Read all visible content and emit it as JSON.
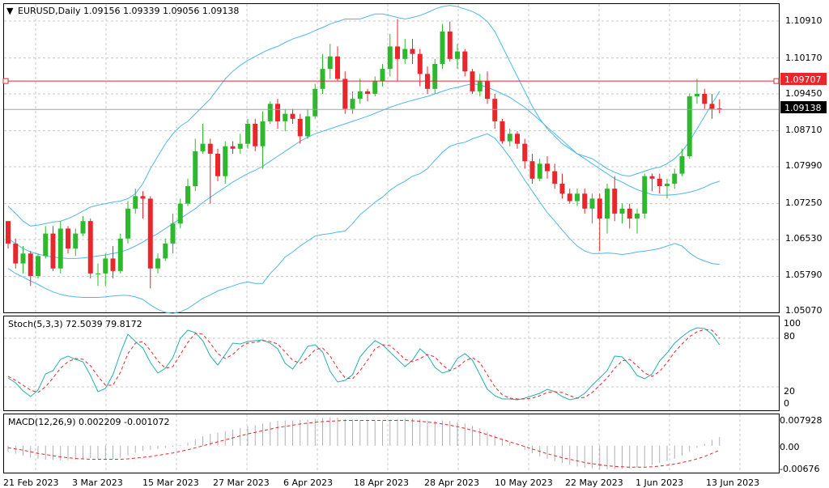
{
  "colors": {
    "bull": "#2db82d",
    "bear": "#e8262b",
    "band": "#4fb8e8",
    "grid": "#c8c8c8",
    "hline": "#e8262b",
    "curline": "#a0a0a0",
    "stoch_main": "#20b2aa",
    "stoch_signal": "#e8262b",
    "macd_hist": "#b0b0b0",
    "macd_signal": "#e8262b"
  },
  "main": {
    "title_arrow": "▼",
    "title": "EURUSD,Daily  1.09156 1.09339 1.09056 1.09138",
    "price_labels": [
      "1.10910",
      "1.10170",
      "1.09450",
      "1.08710",
      "1.07990",
      "1.07250",
      "1.06530",
      "1.05790",
      "1.05070"
    ],
    "hline_label": "1.09707",
    "current_label": "1.09138"
  },
  "stoch": {
    "title": "Stoch(5,3,3) 72.5039 79.8172",
    "levels": [
      "100",
      "80",
      "20",
      "0"
    ]
  },
  "macd": {
    "title": "MACD(12,26,9) 0.002209 -0.001072",
    "levels": [
      "0.007928",
      "0.00",
      "-0.00676"
    ]
  },
  "dates": [
    "21 Feb 2023",
    "3 Mar 2023",
    "15 Mar 2023",
    "27 Mar 2023",
    "6 Apr 2023",
    "18 Apr 2023",
    "28 Apr 2023",
    "10 May 2023",
    "22 May 2023",
    "1 Jun 2023",
    "13 Jun 2023"
  ],
  "chart_data": {
    "type": "candlestick",
    "symbol": "EURUSD",
    "timeframe": "Daily",
    "ylim": [
      1.0507,
      1.1125
    ],
    "horizontal_line": 1.09707,
    "current_price": 1.09138,
    "ohlc": [
      [
        1.069,
        1.069,
        1.0635,
        1.0645
      ],
      [
        1.0645,
        1.0655,
        1.0595,
        1.0605
      ],
      [
        1.0605,
        1.064,
        1.0585,
        1.0625
      ],
      [
        1.0625,
        1.063,
        1.056,
        1.058
      ],
      [
        1.058,
        1.0625,
        1.0575,
        1.062
      ],
      [
        1.062,
        1.068,
        1.0615,
        1.0665
      ],
      [
        1.0665,
        1.068,
        1.059,
        1.0595
      ],
      [
        1.0595,
        1.069,
        1.0585,
        1.0675
      ],
      [
        1.0675,
        1.068,
        1.0625,
        1.0635
      ],
      [
        1.0635,
        1.0675,
        1.062,
        1.0665
      ],
      [
        1.0665,
        1.07,
        1.066,
        1.069
      ],
      [
        1.069,
        1.0695,
        1.0575,
        1.0585
      ],
      [
        1.0585,
        1.0605,
        1.056,
        1.0585
      ],
      [
        1.0585,
        1.0625,
        1.056,
        1.0615
      ],
      [
        1.0615,
        1.064,
        1.0575,
        1.059
      ],
      [
        1.059,
        1.0665,
        1.0585,
        1.0655
      ],
      [
        1.0655,
        1.073,
        1.0645,
        1.0715
      ],
      [
        1.0715,
        1.0755,
        1.0705,
        1.074
      ],
      [
        1.074,
        1.075,
        1.0695,
        1.0735
      ],
      [
        1.0735,
        1.074,
        1.0555,
        1.0595
      ],
      [
        1.0595,
        1.0625,
        1.0585,
        1.0615
      ],
      [
        1.0615,
        1.0655,
        1.061,
        1.0645
      ],
      [
        1.0645,
        1.0705,
        1.0625,
        1.0685
      ],
      [
        1.0685,
        1.0735,
        1.0675,
        1.0725
      ],
      [
        1.0725,
        1.0775,
        1.072,
        1.076
      ],
      [
        1.076,
        1.0855,
        1.075,
        1.083
      ],
      [
        1.083,
        1.0885,
        1.0825,
        1.0845
      ],
      [
        1.0845,
        1.0855,
        1.0725,
        1.0825
      ],
      [
        1.0825,
        1.0835,
        1.077,
        1.078
      ],
      [
        1.078,
        1.085,
        1.0765,
        1.084
      ],
      [
        1.084,
        1.085,
        1.0825,
        1.0835
      ],
      [
        1.0835,
        1.0865,
        1.0825,
        1.0845
      ],
      [
        1.0845,
        1.0895,
        1.0835,
        1.0885
      ],
      [
        1.0885,
        1.0895,
        1.083,
        1.084
      ],
      [
        1.084,
        1.091,
        1.0795,
        1.089
      ],
      [
        1.089,
        1.093,
        1.0885,
        1.0925
      ],
      [
        1.0925,
        1.0935,
        1.0875,
        1.089
      ],
      [
        1.089,
        1.0915,
        1.087,
        1.0905
      ],
      [
        1.0905,
        1.0915,
        1.0885,
        1.0895
      ],
      [
        1.0895,
        1.0905,
        1.0845,
        1.086
      ],
      [
        1.086,
        1.0915,
        1.0855,
        1.09
      ],
      [
        1.09,
        1.0965,
        1.0895,
        1.0955
      ],
      [
        1.0955,
        1.1025,
        1.0945,
        1.0995
      ],
      [
        1.0995,
        1.1045,
        1.0975,
        1.102
      ],
      [
        1.102,
        1.104,
        1.097,
        1.0975
      ],
      [
        1.0975,
        1.099,
        1.0905,
        1.0915
      ],
      [
        1.0915,
        1.095,
        1.0905,
        1.0935
      ],
      [
        1.0935,
        1.0975,
        1.0925,
        1.095
      ],
      [
        1.095,
        1.0955,
        1.093,
        1.0945
      ],
      [
        1.0945,
        1.098,
        1.094,
        1.097
      ],
      [
        1.097,
        1.1005,
        1.096,
        1.0995
      ],
      [
        1.0995,
        1.1065,
        1.098,
        1.104
      ],
      [
        1.104,
        1.1095,
        1.097,
        1.1015
      ],
      [
        1.1015,
        1.1055,
        1.1005,
        1.1035
      ],
      [
        1.1035,
        1.1055,
        1.1005,
        1.1025
      ],
      [
        1.1025,
        1.1035,
        1.096,
        1.0985
      ],
      [
        1.0985,
        1.1,
        1.0945,
        1.0955
      ],
      [
        1.0955,
        1.1015,
        1.0945,
        1.1005
      ],
      [
        1.1005,
        1.1085,
        1.0995,
        1.107
      ],
      [
        1.107,
        1.109,
        1.101,
        1.1015
      ],
      [
        1.1015,
        1.1045,
        1.0995,
        1.103
      ],
      [
        1.103,
        1.1035,
        1.098,
        1.099
      ],
      [
        1.099,
        1.0995,
        1.0945,
        1.095
      ],
      [
        1.095,
        1.0985,
        1.094,
        1.097
      ],
      [
        1.097,
        1.099,
        1.0925,
        1.0935
      ],
      [
        1.0935,
        1.0945,
        1.0875,
        1.089
      ],
      [
        1.089,
        1.0895,
        1.0845,
        1.085
      ],
      [
        1.085,
        1.0875,
        1.084,
        1.0865
      ],
      [
        1.0865,
        1.087,
        1.0835,
        1.0845
      ],
      [
        1.0845,
        1.0855,
        1.0795,
        1.081
      ],
      [
        1.081,
        1.0825,
        1.0765,
        1.0775
      ],
      [
        1.0775,
        1.0815,
        1.077,
        1.0805
      ],
      [
        1.0805,
        1.082,
        1.0775,
        1.079
      ],
      [
        1.079,
        1.0805,
        1.0755,
        1.0765
      ],
      [
        1.0765,
        1.0785,
        1.0735,
        1.0745
      ],
      [
        1.0745,
        1.0755,
        1.0725,
        1.073
      ],
      [
        1.073,
        1.0755,
        1.072,
        1.0745
      ],
      [
        1.0745,
        1.0755,
        1.0705,
        1.0715
      ],
      [
        1.0715,
        1.0745,
        1.0685,
        1.0735
      ],
      [
        1.0735,
        1.0745,
        1.063,
        1.0695
      ],
      [
        1.0695,
        1.0765,
        1.0665,
        1.0755
      ],
      [
        1.0755,
        1.078,
        1.069,
        1.0705
      ],
      [
        1.0705,
        1.0725,
        1.0685,
        1.0715
      ],
      [
        1.0715,
        1.0725,
        1.0675,
        1.0695
      ],
      [
        1.0695,
        1.0715,
        1.0665,
        1.0705
      ],
      [
        1.0705,
        1.0785,
        1.0695,
        1.078
      ],
      [
        1.078,
        1.0785,
        1.075,
        1.0775
      ],
      [
        1.0775,
        1.0785,
        1.0745,
        1.076
      ],
      [
        1.076,
        1.0775,
        1.0735,
        1.0765
      ],
      [
        1.0765,
        1.0795,
        1.0755,
        1.0785
      ],
      [
        1.0785,
        1.0835,
        1.078,
        1.082
      ],
      [
        1.082,
        1.0945,
        1.0815,
        1.094
      ],
      [
        1.094,
        1.0975,
        1.0925,
        1.0945
      ],
      [
        1.0945,
        1.0955,
        1.0915,
        1.0925
      ],
      [
        1.0925,
        1.0945,
        1.0895,
        1.0915
      ],
      [
        1.0916,
        1.0934,
        1.0906,
        1.0914
      ]
    ],
    "bollinger_upper": [
      1.072,
      1.0705,
      1.069,
      1.068,
      1.0682,
      1.0685,
      1.0688,
      1.069,
      1.0695,
      1.0702,
      1.071,
      1.0718,
      1.0722,
      1.0725,
      1.0728,
      1.073,
      1.0735,
      1.0745,
      1.0765,
      1.0795,
      1.082,
      1.0845,
      1.0865,
      1.088,
      1.089,
      1.0905,
      1.092,
      1.0935,
      1.0955,
      1.0975,
      1.099,
      1.1002,
      1.1012,
      1.102,
      1.1028,
      1.1035,
      1.104,
      1.1048,
      1.1055,
      1.106,
      1.1065,
      1.1072,
      1.1078,
      1.1085,
      1.109,
      1.1095,
      1.1095,
      1.1095,
      1.11,
      1.1105,
      1.1105,
      1.1102,
      1.1098,
      1.1095,
      1.1098,
      1.1102,
      1.1108,
      1.1115,
      1.112,
      1.1122,
      1.112,
      1.1115,
      1.111,
      1.1102,
      1.109,
      1.107,
      1.104,
      1.101,
      1.098,
      1.095,
      1.092,
      1.0895,
      1.0875,
      1.086,
      1.0845,
      1.0835,
      1.0825,
      1.082,
      1.0815,
      1.0805,
      1.0795,
      1.0788,
      1.0782,
      1.078,
      1.0785,
      1.079,
      1.0795,
      1.0798,
      1.0805,
      1.0815,
      1.083,
      1.085,
      1.0875,
      1.09,
      1.0925,
      1.095
    ],
    "bollinger_middle": [
      1.0655,
      1.0645,
      1.0635,
      1.0628,
      1.0624,
      1.062,
      1.0618,
      1.0616,
      1.0615,
      1.0615,
      1.0616,
      1.0618,
      1.062,
      1.0622,
      1.0625,
      1.0628,
      1.0633,
      1.064,
      1.0648,
      1.0657,
      1.0665,
      1.0675,
      1.0685,
      1.0695,
      1.0705,
      1.0715,
      1.0727,
      1.0738,
      1.0748,
      1.0758,
      1.0768,
      1.0777,
      1.0785,
      1.0792,
      1.08,
      1.081,
      1.082,
      1.083,
      1.084,
      1.085,
      1.0858,
      1.0865,
      1.087,
      1.0875,
      1.088,
      1.0885,
      1.089,
      1.0895,
      1.09,
      1.0906,
      1.0912,
      1.0918,
      1.0923,
      1.0928,
      1.0932,
      1.0936,
      1.094,
      1.0945,
      1.095,
      1.0955,
      1.0958,
      1.0962,
      1.0965,
      1.0963,
      1.0958,
      1.0952,
      1.0945,
      1.0938,
      1.0928,
      1.0918,
      1.0905,
      1.0892,
      1.0878,
      1.0865,
      1.0852,
      1.0838,
      1.0825,
      1.0815,
      1.0805,
      1.0795,
      1.0785,
      1.0775,
      1.0768,
      1.076,
      1.0753,
      1.0748,
      1.0743,
      1.0742,
      1.0742,
      1.0743,
      1.0745,
      1.0748,
      1.0752,
      1.0758,
      1.0765,
      1.077
    ],
    "bollinger_lower": [
      1.0595,
      1.0585,
      1.0578,
      1.057,
      1.0563,
      1.0555,
      1.0548,
      1.0543,
      1.054,
      1.0538,
      1.0537,
      1.0537,
      1.0537,
      1.0538,
      1.054,
      1.0541,
      1.0541,
      1.0538,
      1.0533,
      1.0522,
      1.0513,
      1.0507,
      1.0505,
      1.0508,
      1.0515,
      1.0525,
      1.0535,
      1.0542,
      1.055,
      1.0555,
      1.056,
      1.0565,
      1.0568,
      1.0565,
      1.0565,
      1.0585,
      1.06,
      1.0618,
      1.0628,
      1.064,
      1.065,
      1.066,
      1.0663,
      1.0665,
      1.0668,
      1.067,
      1.0685,
      1.0703,
      1.0715,
      1.0728,
      1.0738,
      1.0752,
      1.0762,
      1.077,
      1.078,
      1.0785,
      1.0795,
      1.0812,
      1.0828,
      1.084,
      1.0845,
      1.0848,
      1.0855,
      1.086,
      1.0865,
      1.0856,
      1.0838,
      1.0818,
      1.0795,
      1.0772,
      1.075,
      1.0728,
      1.0707,
      1.069,
      1.0672,
      1.0655,
      1.064,
      1.063,
      1.0625,
      1.0625,
      1.0626,
      1.0625,
      1.0623,
      1.0625,
      1.0628,
      1.063,
      1.0632,
      1.0635,
      1.064,
      1.0645,
      1.064,
      1.0626,
      1.0616,
      1.061,
      1.0605,
      1.0603
    ],
    "stochastic_main": [
      31,
      25,
      15,
      8,
      16,
      36,
      40,
      54,
      58,
      54,
      51,
      34,
      14,
      18,
      35,
      62,
      85,
      76,
      68,
      50,
      37,
      43,
      56,
      80,
      90,
      87,
      77,
      58,
      47,
      60,
      74,
      73,
      76,
      77,
      78,
      74,
      67,
      49,
      42,
      55,
      70,
      72,
      63,
      39,
      26,
      28,
      35,
      57,
      68,
      77,
      72,
      63,
      54,
      45,
      53,
      67,
      59,
      44,
      37,
      40,
      55,
      61,
      53,
      35,
      17,
      9,
      5,
      5,
      4,
      6,
      9,
      12,
      17,
      14,
      8,
      4,
      6,
      12,
      22,
      31,
      40,
      58,
      57,
      47,
      34,
      30,
      36,
      52,
      62,
      74,
      82,
      89,
      93,
      92,
      85,
      72
    ],
    "stochastic_signal": [
      33,
      28,
      22,
      16,
      13,
      20,
      31,
      43,
      51,
      55,
      54,
      46,
      33,
      22,
      22,
      38,
      61,
      74,
      76,
      65,
      52,
      43,
      45,
      60,
      75,
      86,
      85,
      74,
      61,
      55,
      60,
      69,
      74,
      75,
      77,
      76,
      73,
      63,
      53,
      49,
      56,
      66,
      68,
      58,
      43,
      31,
      30,
      40,
      53,
      67,
      72,
      71,
      63,
      54,
      51,
      55,
      60,
      57,
      47,
      40,
      44,
      52,
      56,
      50,
      35,
      20,
      10,
      6,
      5,
      5,
      6,
      9,
      13,
      14,
      13,
      9,
      6,
      7,
      13,
      22,
      31,
      43,
      52,
      54,
      46,
      37,
      33,
      39,
      50,
      63,
      73,
      82,
      88,
      91,
      90,
      80
    ],
    "macd_histogram": [
      -0.0015,
      -0.002,
      -0.0025,
      -0.003,
      -0.0033,
      -0.0035,
      -0.0036,
      -0.0037,
      -0.0036,
      -0.0035,
      -0.0032,
      -0.0031,
      -0.0033,
      -0.0034,
      -0.0033,
      -0.003,
      -0.0024,
      -0.0018,
      -0.0013,
      -0.001,
      -0.0008,
      -0.0005,
      -0.0002,
      0.0002,
      0.0008,
      0.0016,
      0.0024,
      0.003,
      0.0033,
      0.0037,
      0.0041,
      0.0045,
      0.0049,
      0.0052,
      0.0056,
      0.006,
      0.0063,
      0.0064,
      0.0064,
      0.0065,
      0.0066,
      0.0068,
      0.007,
      0.0072,
      0.0071,
      0.0068,
      0.0066,
      0.0065,
      0.0064,
      0.0064,
      0.0064,
      0.0066,
      0.0068,
      0.0069,
      0.0069,
      0.0067,
      0.0064,
      0.0063,
      0.0064,
      0.0063,
      0.006,
      0.0056,
      0.005,
      0.0044,
      0.0036,
      0.0027,
      0.0017,
      0.0008,
      -0.0001,
      -0.001,
      -0.0019,
      -0.0027,
      -0.0033,
      -0.0038,
      -0.0043,
      -0.0048,
      -0.0052,
      -0.0055,
      -0.0057,
      -0.0059,
      -0.0059,
      -0.0059,
      -0.0058,
      -0.0057,
      -0.0055,
      -0.0052,
      -0.0048,
      -0.0043,
      -0.0038,
      -0.0033,
      -0.0025,
      -0.0015,
      -0.0005,
      0.0005,
      0.0015,
      0.0022
    ],
    "macd_signal": [
      -0.0005,
      -0.0008,
      -0.0011,
      -0.0015,
      -0.0019,
      -0.0022,
      -0.0025,
      -0.0028,
      -0.003,
      -0.0032,
      -0.0033,
      -0.0034,
      -0.0034,
      -0.0034,
      -0.0034,
      -0.0034,
      -0.0033,
      -0.0031,
      -0.0029,
      -0.0027,
      -0.0024,
      -0.0021,
      -0.0018,
      -0.0014,
      -0.001,
      -0.0005,
      0.0,
      0.0005,
      0.001,
      0.0015,
      0.002,
      0.0025,
      0.003,
      0.0034,
      0.0038,
      0.0042,
      0.0046,
      0.0049,
      0.0052,
      0.0055,
      0.0057,
      0.0059,
      0.0061,
      0.0062,
      0.0063,
      0.0064,
      0.0064,
      0.0064,
      0.0064,
      0.0064,
      0.0064,
      0.0064,
      0.0064,
      0.0064,
      0.0063,
      0.0062,
      0.006,
      0.0058,
      0.0055,
      0.0052,
      0.0048,
      0.0044,
      0.0039,
      0.0034,
      0.0028,
      0.0022,
      0.0016,
      0.001,
      0.0004,
      -0.0002,
      -0.0008,
      -0.0014,
      -0.002,
      -0.0025,
      -0.003,
      -0.0034,
      -0.0038,
      -0.0042,
      -0.0045,
      -0.0048,
      -0.005,
      -0.0052,
      -0.0053,
      -0.0054,
      -0.0054,
      -0.0054,
      -0.0053,
      -0.0051,
      -0.0049,
      -0.0046,
      -0.0042,
      -0.0038,
      -0.0033,
      -0.0027,
      -0.0019,
      -0.0011
    ]
  }
}
